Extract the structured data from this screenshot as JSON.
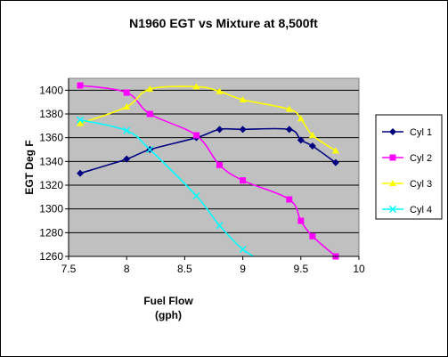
{
  "chart_data": {
    "type": "line",
    "title": "N1960 EGT vs Mixture at 8,500ft",
    "xlabel_line1": "Fuel Flow",
    "xlabel_line2": "(gph)",
    "ylabel": "EGT Deg F",
    "xlim": [
      7.5,
      10
    ],
    "ylim": [
      1260,
      1410
    ],
    "xticks": [
      7.5,
      8,
      8.5,
      9,
      9.5,
      10
    ],
    "xtick_labels": [
      "7.5",
      "8",
      "8.5",
      "9",
      "9.5",
      "10"
    ],
    "yticks": [
      1260,
      1280,
      1300,
      1320,
      1340,
      1360,
      1380,
      1400
    ],
    "ytick_labels": [
      "1260",
      "1280",
      "1300",
      "1320",
      "1340",
      "1360",
      "1380",
      "1400"
    ],
    "grid": "horizontal",
    "legend_position": "right",
    "plot_background": "#c0c0c0",
    "series": [
      {
        "name": "Cyl 1",
        "color": "#000080",
        "marker": "diamond",
        "x": [
          7.6,
          8.0,
          8.2,
          8.6,
          8.8,
          9.0,
          9.4,
          9.5,
          9.6,
          9.8
        ],
        "y": [
          1330,
          1342,
          1350,
          1360,
          1367,
          1367,
          1367,
          1358,
          1353,
          1339
        ]
      },
      {
        "name": "Cyl 2",
        "color": "#ff00ff",
        "marker": "square",
        "x": [
          7.6,
          8.0,
          8.2,
          8.6,
          8.8,
          9.0,
          9.4,
          9.5,
          9.6,
          9.8
        ],
        "y": [
          1404,
          1398,
          1380,
          1362,
          1337,
          1324,
          1308,
          1290,
          1277,
          1260
        ]
      },
      {
        "name": "Cyl 3",
        "color": "#ffff00",
        "marker": "triangle",
        "x": [
          7.6,
          8.0,
          8.2,
          8.6,
          8.8,
          9.0,
          9.4,
          9.5,
          9.6,
          9.8
        ],
        "y": [
          1372,
          1386,
          1401,
          1403,
          1399,
          1392,
          1384,
          1376,
          1362,
          1349
        ]
      },
      {
        "name": "Cyl 4",
        "color": "#00ffff",
        "marker": "x",
        "x": [
          7.6,
          8.0,
          8.2,
          8.6,
          8.8,
          9.0,
          9.2
        ],
        "y": [
          1375,
          1366,
          1350,
          1311,
          1286,
          1266,
          1254
        ]
      }
    ]
  }
}
